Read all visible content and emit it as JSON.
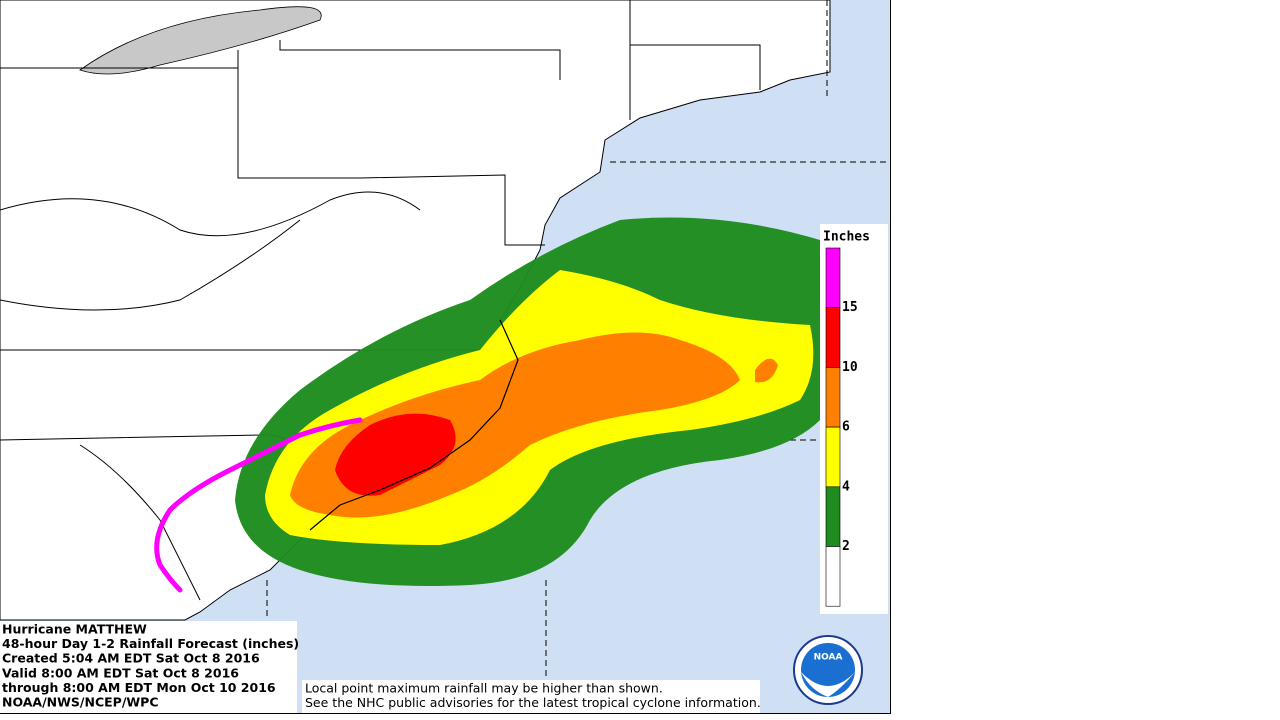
{
  "caption": {
    "lines": [
      "Hurricane MATTHEW",
      "48-hour Day 1-2 Rainfall Forecast (inches)",
      "Created 5:04 AM EDT Sat Oct 8 2016",
      "Valid 8:00 AM EDT Sat Oct 8 2016",
      "through 8:00 AM EDT Mon Oct 10 2016",
      "NOAA/NWS/NCEP/WPC"
    ]
  },
  "note": {
    "lines": [
      "Local point maximum rainfall may be higher than shown.",
      "See the NHC public advisories for the latest tropical cyclone information."
    ]
  },
  "legend": {
    "title": "Inches",
    "labels": [
      15,
      10,
      6,
      4,
      2
    ],
    "colors": [
      "#ff00ff",
      "#ff0000",
      "#ff8000",
      "#ffff00",
      "#1e8c1e",
      "#ffffff"
    ]
  },
  "logo": {
    "text": "NOAA"
  }
}
